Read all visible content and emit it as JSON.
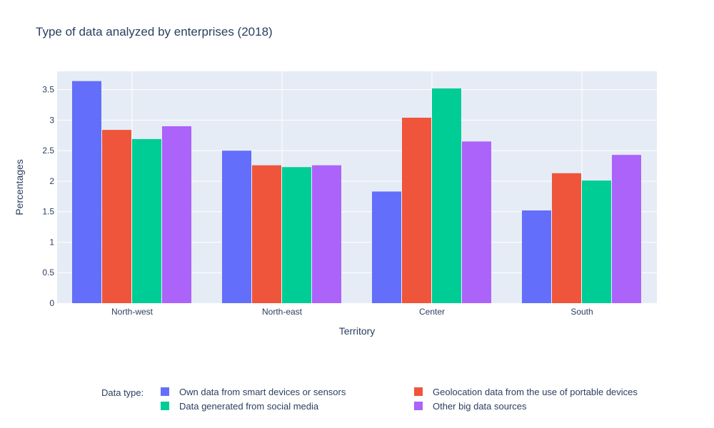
{
  "chart_data": {
    "type": "bar",
    "title": "Type of data analyzed by enterprises (2018)",
    "xlabel": "Territory",
    "ylabel": "Percentages",
    "categories": [
      "North-west",
      "North-east",
      "Center",
      "South"
    ],
    "ylim": [
      0,
      3.8
    ],
    "yticks": [
      0,
      0.5,
      1,
      1.5,
      2,
      2.5,
      3,
      3.5
    ],
    "ytick_labels": [
      "0",
      "0.5",
      "1",
      "1.5",
      "2",
      "2.5",
      "3",
      "3.5"
    ],
    "grid": true,
    "legend_title": "Data type:",
    "legend_position": "bottom",
    "series": [
      {
        "name": "Own data from smart devices or sensors",
        "color": "#636efa",
        "values": [
          3.64,
          2.5,
          1.83,
          1.52
        ]
      },
      {
        "name": "Geolocation data from the use of portable devices",
        "color": "#ef553b",
        "values": [
          2.84,
          2.26,
          3.04,
          2.13
        ]
      },
      {
        "name": "Data generated from social media",
        "color": "#00cc96",
        "values": [
          2.69,
          2.23,
          3.52,
          2.01
        ]
      },
      {
        "name": "Other big data sources",
        "color": "#ab63fa",
        "values": [
          2.9,
          2.26,
          2.65,
          2.43
        ]
      }
    ]
  }
}
